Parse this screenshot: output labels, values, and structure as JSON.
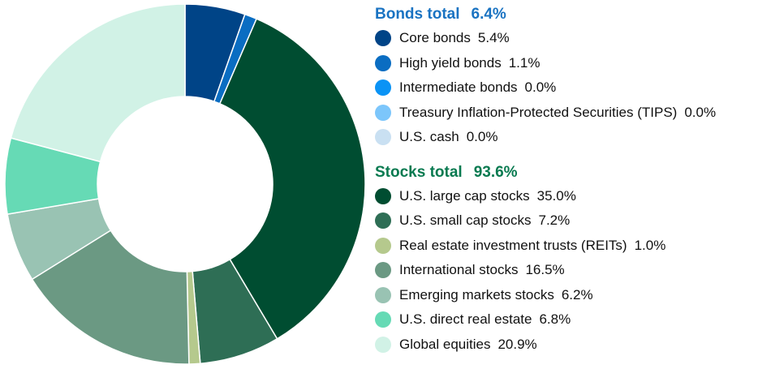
{
  "chart_data": {
    "type": "pie",
    "donut": true,
    "start": "top, clockwise",
    "groups": [
      {
        "title": "Bonds total",
        "total": "6.4%",
        "color": "#1a73c2",
        "items": [
          {
            "label": "Core bonds",
            "value": 5.4,
            "text": "5.4%",
            "color": "#004487"
          },
          {
            "label": "High yield bonds",
            "value": 1.1,
            "text": "1.1%",
            "color": "#0a6dc2"
          },
          {
            "label": "Intermediate bonds",
            "value": 0.0,
            "text": "0.0%",
            "color": "#0a93f5"
          },
          {
            "label": "Treasury Inflation-Protected Securities (TIPS)",
            "value": 0.0,
            "text": "0.0%",
            "color": "#7cc6fb"
          },
          {
            "label": "U.S. cash",
            "value": 0.0,
            "text": "0.0%",
            "color": "#c9e0f2"
          }
        ]
      },
      {
        "title": "Stocks total",
        "total": "93.6%",
        "color": "#087a50",
        "items": [
          {
            "label": "U.S. large cap stocks",
            "value": 35.0,
            "text": "35.0%",
            "color": "#004d31"
          },
          {
            "label": "U.S. small cap stocks",
            "value": 7.2,
            "text": "7.2%",
            "color": "#2e6e55"
          },
          {
            "label": "Real estate investment trusts (REITs)",
            "value": 1.0,
            "text": "1.0%",
            "color": "#b5c98d"
          },
          {
            "label": "International stocks",
            "value": 16.5,
            "text": "16.5%",
            "color": "#6b9983"
          },
          {
            "label": "Emerging markets stocks",
            "value": 6.2,
            "text": "6.2%",
            "color": "#99c3b3"
          },
          {
            "label": "U.S. direct real estate",
            "value": 6.8,
            "text": "6.8%",
            "color": "#66dab5"
          },
          {
            "label": "Global equities",
            "value": 20.9,
            "text": "20.9%",
            "color": "#d1f2e6"
          }
        ]
      }
    ]
  }
}
